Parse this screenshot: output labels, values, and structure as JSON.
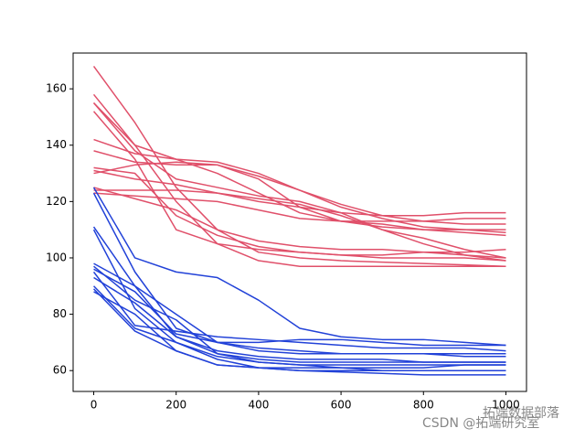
{
  "chart_data": {
    "type": "line",
    "x": [
      0,
      100,
      200,
      300,
      400,
      500,
      600,
      700,
      800,
      900,
      1000
    ],
    "series": [
      {
        "color": "#e0506a",
        "values": [
          168,
          148,
          125,
          110,
          102,
          100,
          99,
          98.5,
          98,
          97.5,
          97
        ]
      },
      {
        "color": "#e0506a",
        "values": [
          158,
          140,
          120,
          105,
          99,
          97,
          97,
          97,
          97,
          97,
          97
        ]
      },
      {
        "color": "#e0506a",
        "values": [
          155,
          140,
          135,
          130,
          123,
          116,
          113,
          111,
          110,
          109,
          108
        ]
      },
      {
        "color": "#e0506a",
        "values": [
          142,
          137,
          135,
          134,
          130,
          124,
          118,
          114,
          111,
          110,
          110
        ]
      },
      {
        "color": "#e0506a",
        "values": [
          138,
          134,
          133,
          133,
          129,
          124,
          119,
          115,
          113,
          112,
          112
        ]
      },
      {
        "color": "#e0506a",
        "values": [
          131,
          128,
          126,
          123,
          120,
          118,
          116,
          115,
          115,
          116,
          116
        ]
      },
      {
        "color": "#e0506a",
        "values": [
          130,
          133,
          134,
          133,
          128,
          118,
          113,
          113,
          113,
          114,
          114
        ]
      },
      {
        "color": "#e0506a",
        "values": [
          124,
          124,
          124,
          123,
          121,
          119,
          115,
          110,
          107,
          103,
          100
        ]
      },
      {
        "color": "#e0506a",
        "values": [
          123,
          122,
          121,
          120,
          117,
          114,
          113,
          112,
          110,
          110,
          109
        ]
      },
      {
        "color": "#e0506a",
        "values": [
          132,
          130,
          115,
          108,
          104,
          102,
          101,
          101,
          102,
          102,
          103
        ]
      },
      {
        "color": "#e0506a",
        "values": [
          152,
          135,
          110,
          105,
          103,
          102,
          101,
          100,
          100,
          100,
          99
        ]
      },
      {
        "color": "#e0506a",
        "values": [
          155,
          138,
          128,
          125,
          122,
          120,
          116,
          110,
          105,
          101,
          99
        ]
      },
      {
        "color": "#e0506a",
        "values": [
          125,
          121,
          117,
          110,
          106,
          104,
          103,
          103,
          102,
          101,
          100
        ]
      },
      {
        "color": "#2242d8",
        "values": [
          125,
          100,
          95,
          93,
          85,
          75,
          72,
          71,
          71,
          70,
          69
        ]
      },
      {
        "color": "#2242d8",
        "values": [
          123,
          95,
          75,
          70,
          68,
          67,
          66,
          66,
          66,
          65,
          65
        ]
      },
      {
        "color": "#2242d8",
        "values": [
          111,
          90,
          72,
          66,
          64,
          63,
          63,
          63,
          63,
          63,
          63
        ]
      },
      {
        "color": "#2242d8",
        "values": [
          110,
          82,
          70,
          64,
          61,
          60,
          59.5,
          59,
          58.5,
          58.5,
          58.5
        ]
      },
      {
        "color": "#2242d8",
        "values": [
          98,
          90,
          80,
          70,
          67,
          66,
          66,
          66,
          66,
          66,
          66
        ]
      },
      {
        "color": "#2242d8",
        "values": [
          96,
          88,
          73,
          70,
          70,
          71,
          71,
          70,
          69,
          69,
          69
        ]
      },
      {
        "color": "#2242d8",
        "values": [
          95,
          76,
          74,
          72,
          71,
          70,
          69,
          68,
          68,
          68,
          67
        ]
      },
      {
        "color": "#2242d8",
        "values": [
          90,
          75,
          70,
          65,
          63,
          62,
          62,
          62,
          62,
          62,
          62
        ]
      },
      {
        "color": "#2242d8",
        "values": [
          88,
          80,
          67,
          62,
          61,
          61,
          61,
          61,
          61,
          62,
          62
        ]
      },
      {
        "color": "#2242d8",
        "values": [
          97,
          85,
          78,
          66,
          63,
          62,
          61,
          60,
          60,
          60,
          60
        ]
      },
      {
        "color": "#2242d8",
        "values": [
          89,
          74,
          67,
          62,
          61,
          60,
          60,
          60,
          60,
          60,
          60
        ]
      },
      {
        "color": "#2242d8",
        "values": [
          93,
          84,
          72,
          67,
          65,
          64,
          64,
          64,
          63,
          63,
          63
        ]
      }
    ],
    "xlim": [
      -50,
      1050
    ],
    "xticks": [
      0,
      200,
      400,
      600,
      800,
      1000
    ],
    "ylim": [
      52.6,
      172.7
    ],
    "yticks": [
      60,
      80,
      100,
      120,
      140,
      160
    ],
    "watermark": [
      "拓端数据部落",
      "CSDN @拓端研究室"
    ]
  }
}
